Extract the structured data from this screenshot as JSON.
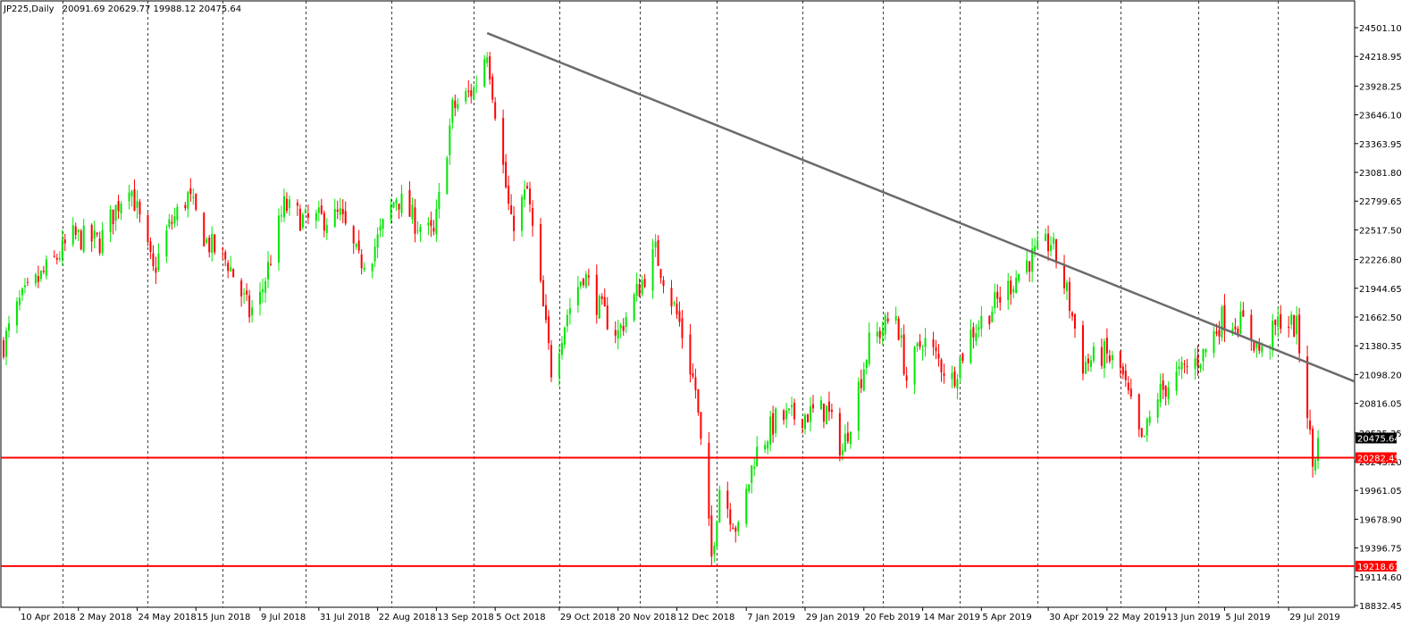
{
  "header": {
    "symbol": "JP225,Daily",
    "ohlc": "20091.69 20629.77 19988.12 20475.64"
  },
  "colors": {
    "background": "#ffffff",
    "axis": "#000000",
    "grid": "#000000",
    "bull": "#00e600",
    "bear": "#ff0000",
    "trendline": "#6b6b6b",
    "support": "#ff0000",
    "price_label_bg": "#000000"
  },
  "chart_data": {
    "type": "candlestick",
    "title": "JP225,Daily",
    "ylim": [
      18832.45,
      24650
    ],
    "y_ticks": [
      24501.1,
      24218.95,
      23928.25,
      23646.1,
      23363.95,
      23081.8,
      22799.65,
      22517.5,
      22226.8,
      21944.65,
      21662.5,
      21380.35,
      21098.2,
      20816.05,
      20525.35,
      20243.2,
      19961.05,
      19678.9,
      19396.75,
      19114.6,
      18832.45
    ],
    "y_tick_labels": [
      "24501.10",
      "24218.95",
      "23928.25",
      "23646.10",
      "23363.95",
      "23081.80",
      "22799.65",
      "22517.50",
      "22226.80",
      "21944.65",
      "21662.50",
      "21380.35",
      "21098.20",
      "20816.05",
      "20525.35",
      "20243.20",
      "19961.05",
      "19678.90",
      "19396.75",
      "19114.60",
      "18832.45"
    ],
    "x_labels": [
      "10 Apr 2018",
      "2 May 2018",
      "24 May 2018",
      "15 Jun 2018",
      "9 Jul 2018",
      "31 Jul 2018",
      "22 Aug 2018",
      "13 Sep 2018",
      "5 Oct 2018",
      "29 Oct 2018",
      "20 Nov 2018",
      "12 Dec 2018",
      "7 Jan 2019",
      "29 Jan 2019",
      "20 Feb 2019",
      "14 Mar 2019",
      "5 Apr 2019",
      "30 Apr 2019",
      "22 May 2019",
      "13 Jun 2019",
      "5 Jul 2019",
      "29 Jul 2019"
    ],
    "grid": "vertical dashed",
    "current_price": 20475.64,
    "current_price_label": "20475.64",
    "support_levels": [
      {
        "value": 20282.45,
        "label": "20282.45"
      },
      {
        "value": 19218.61,
        "label": "19218.61"
      }
    ],
    "trendline": {
      "from": {
        "date": "2018-10-02",
        "value": 24448
      },
      "to": {
        "date": "2019-08-31",
        "value": 21030
      }
    },
    "path": [
      {
        "date": "2018-04-04",
        "close": 21400
      },
      {
        "date": "2018-04-10",
        "close": 21800
      },
      {
        "date": "2018-04-24",
        "close": 22250
      },
      {
        "date": "2018-04-30",
        "close": 22450
      },
      {
        "date": "2018-05-10",
        "close": 22400
      },
      {
        "date": "2018-05-21",
        "close": 23000
      },
      {
        "date": "2018-05-30",
        "close": 22100
      },
      {
        "date": "2018-06-05",
        "close": 22550
      },
      {
        "date": "2018-06-12",
        "close": 22850
      },
      {
        "date": "2018-06-19",
        "close": 22400
      },
      {
        "date": "2018-06-27",
        "close": 22200
      },
      {
        "date": "2018-07-05",
        "close": 21700
      },
      {
        "date": "2018-07-09",
        "close": 21850
      },
      {
        "date": "2018-07-18",
        "close": 22750
      },
      {
        "date": "2018-07-26",
        "close": 22600
      },
      {
        "date": "2018-08-08",
        "close": 22650
      },
      {
        "date": "2018-08-15",
        "close": 22200
      },
      {
        "date": "2018-08-20",
        "close": 22300
      },
      {
        "date": "2018-08-29",
        "close": 22850
      },
      {
        "date": "2018-09-05",
        "close": 22600
      },
      {
        "date": "2018-09-12",
        "close": 22450
      },
      {
        "date": "2018-09-19",
        "close": 23700
      },
      {
        "date": "2018-09-27",
        "close": 23900
      },
      {
        "date": "2018-10-02",
        "close": 24300
      },
      {
        "date": "2018-10-04",
        "close": 23900
      },
      {
        "date": "2018-10-11",
        "close": 22550
      },
      {
        "date": "2018-10-17",
        "close": 22900
      },
      {
        "date": "2018-10-26",
        "close": 21150
      },
      {
        "date": "2018-11-01",
        "close": 21700
      },
      {
        "date": "2018-11-07",
        "close": 22100
      },
      {
        "date": "2018-11-13",
        "close": 21750
      },
      {
        "date": "2018-11-20",
        "close": 21500
      },
      {
        "date": "2018-12-04",
        "close": 22300
      },
      {
        "date": "2018-12-13",
        "close": 21600
      },
      {
        "date": "2018-12-19",
        "close": 20950
      },
      {
        "date": "2018-12-25",
        "close": 19300
      },
      {
        "date": "2018-12-28",
        "close": 20000
      },
      {
        "date": "2019-01-04",
        "close": 19550
      },
      {
        "date": "2019-01-10",
        "close": 20300
      },
      {
        "date": "2019-01-18",
        "close": 20650
      },
      {
        "date": "2019-01-28",
        "close": 20700
      },
      {
        "date": "2019-02-06",
        "close": 20750
      },
      {
        "date": "2019-02-12",
        "close": 20350
      },
      {
        "date": "2019-02-22",
        "close": 21400
      },
      {
        "date": "2019-03-04",
        "close": 21700
      },
      {
        "date": "2019-03-08",
        "close": 21050
      },
      {
        "date": "2019-03-14",
        "close": 21450
      },
      {
        "date": "2019-03-25",
        "close": 21050
      },
      {
        "date": "2019-04-01",
        "close": 21500
      },
      {
        "date": "2019-04-12",
        "close": 21850
      },
      {
        "date": "2019-04-22",
        "close": 22200
      },
      {
        "date": "2019-05-01",
        "close": 22400
      },
      {
        "date": "2019-05-07",
        "close": 21900
      },
      {
        "date": "2019-05-13",
        "close": 21200
      },
      {
        "date": "2019-05-21",
        "close": 21300
      },
      {
        "date": "2019-05-27",
        "close": 21150
      },
      {
        "date": "2019-06-04",
        "close": 20400
      },
      {
        "date": "2019-06-10",
        "close": 20900
      },
      {
        "date": "2019-06-18",
        "close": 21100
      },
      {
        "date": "2019-06-27",
        "close": 21300
      },
      {
        "date": "2019-07-04",
        "close": 21650
      },
      {
        "date": "2019-07-12",
        "close": 21600
      },
      {
        "date": "2019-07-19",
        "close": 21300
      },
      {
        "date": "2019-07-26",
        "close": 21650
      },
      {
        "date": "2019-08-01",
        "close": 21550
      },
      {
        "date": "2019-08-05",
        "close": 20750
      },
      {
        "date": "2019-08-07",
        "close": 20200
      },
      {
        "date": "2019-08-09",
        "close": 20475
      }
    ]
  }
}
